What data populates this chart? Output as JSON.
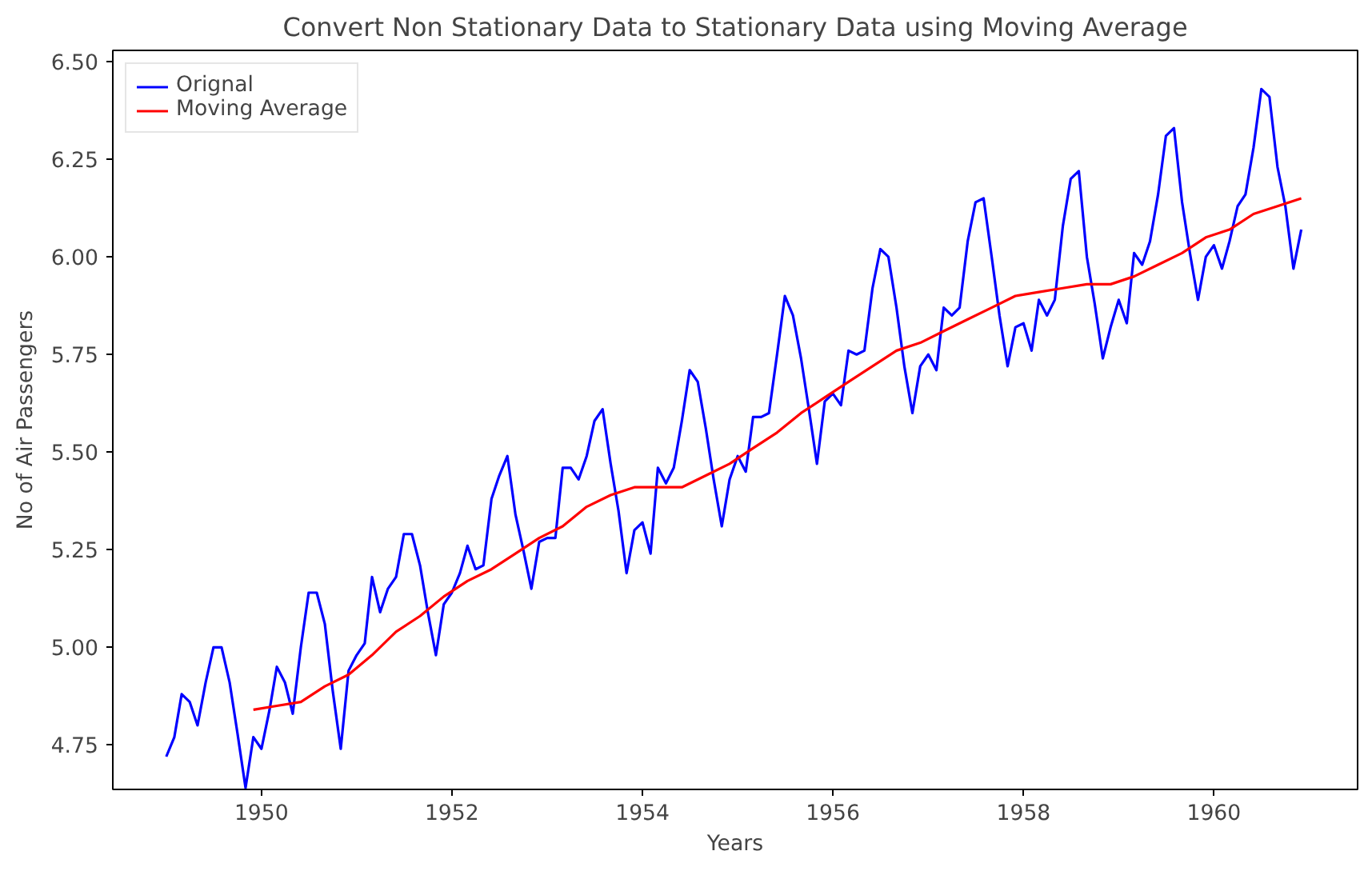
{
  "chart_data": {
    "type": "line",
    "title": "Convert Non Stationary Data to Stationary Data using Moving Average",
    "xlabel": "Years",
    "ylabel": "No of Air Passengers",
    "xlim": [
      "1948-06-10",
      "1961-07-05"
    ],
    "ylim": [
      4.636,
      6.529
    ],
    "xticks": [
      {
        "value": "1950",
        "label": "1950"
      },
      {
        "value": "1952",
        "label": "1952"
      },
      {
        "value": "1954",
        "label": "1954"
      },
      {
        "value": "1956",
        "label": "1956"
      },
      {
        "value": "1958",
        "label": "1958"
      },
      {
        "value": "1960",
        "label": "1960"
      }
    ],
    "yticks": [
      4.75,
      {
        "value": 5,
        "label": "5.00"
      },
      5.25,
      {
        "value": 5.5,
        "label": "5.50"
      },
      5.75,
      {
        "value": 6,
        "label": "6.00"
      },
      6.25,
      {
        "value": 6.5,
        "label": "6.50"
      }
    ],
    "grid": false,
    "legend": "top left",
    "series": [
      {
        "name": "Orignal",
        "color": "#0000ff",
        "x": [
          "1949-01",
          "1949-02",
          "1949-03",
          "1949-04",
          "1949-05",
          "1949-06",
          "1949-07",
          "1949-08",
          "1949-09",
          "1949-10",
          "1949-11",
          "1949-12",
          "1950-01",
          "1950-02",
          "1950-03",
          "1950-04",
          "1950-05",
          "1950-06",
          "1950-07",
          "1950-08",
          "1950-09",
          "1950-10",
          "1950-11",
          "1950-12",
          "1951-01",
          "1951-02",
          "1951-03",
          "1951-04",
          "1951-05",
          "1951-06",
          "1951-07",
          "1951-08",
          "1951-09",
          "1951-10",
          "1951-11",
          "1951-12",
          "1952-01",
          "1952-02",
          "1952-03",
          "1952-04",
          "1952-05",
          "1952-06",
          "1952-07",
          "1952-08",
          "1952-09",
          "1952-10",
          "1952-11",
          "1952-12",
          "1953-01",
          "1953-02",
          "1953-03",
          "1953-04",
          "1953-05",
          "1953-06",
          "1953-07",
          "1953-08",
          "1953-09",
          "1953-10",
          "1953-11",
          "1953-12",
          "1954-01",
          "1954-02",
          "1954-03",
          "1954-04",
          "1954-05",
          "1954-06",
          "1954-07",
          "1954-08",
          "1954-09",
          "1954-10",
          "1954-11",
          "1954-12",
          "1955-01",
          "1955-02",
          "1955-03",
          "1955-04",
          "1955-05",
          "1955-06",
          "1955-07",
          "1955-08",
          "1955-09",
          "1955-10",
          "1955-11",
          "1955-12",
          "1956-01",
          "1956-02",
          "1956-03",
          "1956-04",
          "1956-05",
          "1956-06",
          "1956-07",
          "1956-08",
          "1956-09",
          "1956-10",
          "1956-11",
          "1956-12",
          "1957-01",
          "1957-02",
          "1957-03",
          "1957-04",
          "1957-05",
          "1957-06",
          "1957-07",
          "1957-08",
          "1957-09",
          "1957-10",
          "1957-11",
          "1957-12",
          "1958-01",
          "1958-02",
          "1958-03",
          "1958-04",
          "1958-05",
          "1958-06",
          "1958-07",
          "1958-08",
          "1958-09",
          "1958-10",
          "1958-11",
          "1958-12",
          "1959-01",
          "1959-02",
          "1959-03",
          "1959-04",
          "1959-05",
          "1959-06",
          "1959-07",
          "1959-08",
          "1959-09",
          "1959-10",
          "1959-11",
          "1959-12",
          "1960-01",
          "1960-02",
          "1960-03",
          "1960-04",
          "1960-05",
          "1960-06",
          "1960-07",
          "1960-08",
          "1960-09",
          "1960-10",
          "1960-11",
          "1960-12"
        ],
        "values": [
          4.72,
          4.77,
          4.88,
          4.86,
          4.8,
          4.91,
          5.0,
          5.0,
          4.91,
          4.78,
          4.64,
          4.77,
          4.74,
          4.84,
          4.95,
          4.91,
          4.83,
          5.0,
          5.14,
          5.14,
          5.06,
          4.89,
          4.74,
          4.94,
          4.98,
          5.01,
          5.18,
          5.09,
          5.15,
          5.18,
          5.29,
          5.29,
          5.21,
          5.09,
          4.98,
          5.11,
          5.14,
          5.19,
          5.26,
          5.2,
          5.21,
          5.38,
          5.44,
          5.49,
          5.34,
          5.25,
          5.15,
          5.27,
          5.28,
          5.28,
          5.46,
          5.46,
          5.43,
          5.49,
          5.58,
          5.61,
          5.47,
          5.35,
          5.19,
          5.3,
          5.32,
          5.24,
          5.46,
          5.42,
          5.46,
          5.58,
          5.71,
          5.68,
          5.56,
          5.43,
          5.31,
          5.43,
          5.49,
          5.45,
          5.59,
          5.59,
          5.6,
          5.75,
          5.9,
          5.85,
          5.74,
          5.61,
          5.47,
          5.63,
          5.65,
          5.62,
          5.76,
          5.75,
          5.76,
          5.92,
          6.02,
          6.0,
          5.87,
          5.72,
          5.6,
          5.72,
          5.75,
          5.71,
          5.87,
          5.85,
          5.87,
          6.04,
          6.14,
          6.15,
          6.0,
          5.85,
          5.72,
          5.82,
          5.83,
          5.76,
          5.89,
          5.85,
          5.89,
          6.08,
          6.2,
          6.22,
          6.0,
          5.88,
          5.74,
          5.82,
          5.89,
          5.83,
          6.01,
          5.98,
          6.04,
          6.16,
          6.31,
          6.33,
          6.14,
          6.01,
          5.89,
          6.0,
          6.03,
          5.97,
          6.04,
          6.13,
          6.16,
          6.28,
          6.43,
          6.41,
          6.23,
          6.13,
          5.97,
          6.07
        ]
      },
      {
        "name": "Moving Average",
        "color": "#ff0000",
        "x": [
          "1949-12",
          "1950-03",
          "1950-06",
          "1950-09",
          "1950-12",
          "1951-03",
          "1951-06",
          "1951-09",
          "1951-12",
          "1952-03",
          "1952-06",
          "1952-09",
          "1952-12",
          "1953-03",
          "1953-06",
          "1953-09",
          "1953-12",
          "1954-03",
          "1954-06",
          "1954-09",
          "1954-12",
          "1955-03",
          "1955-06",
          "1955-09",
          "1955-12",
          "1956-03",
          "1956-06",
          "1956-09",
          "1956-12",
          "1957-03",
          "1957-06",
          "1957-09",
          "1957-12",
          "1958-03",
          "1958-06",
          "1958-09",
          "1958-12",
          "1959-03",
          "1959-06",
          "1959-09",
          "1959-12",
          "1960-03",
          "1960-06",
          "1960-09",
          "1960-12"
        ],
        "values": [
          4.84,
          4.85,
          4.86,
          4.9,
          4.93,
          4.98,
          5.04,
          5.08,
          5.13,
          5.17,
          5.2,
          5.24,
          5.28,
          5.31,
          5.36,
          5.39,
          5.41,
          5.41,
          5.41,
          5.44,
          5.47,
          5.51,
          5.55,
          5.6,
          5.64,
          5.68,
          5.72,
          5.76,
          5.78,
          5.81,
          5.84,
          5.87,
          5.9,
          5.91,
          5.92,
          5.93,
          5.93,
          5.95,
          5.98,
          6.01,
          6.05,
          6.07,
          6.11,
          6.13,
          6.15
        ]
      }
    ]
  }
}
